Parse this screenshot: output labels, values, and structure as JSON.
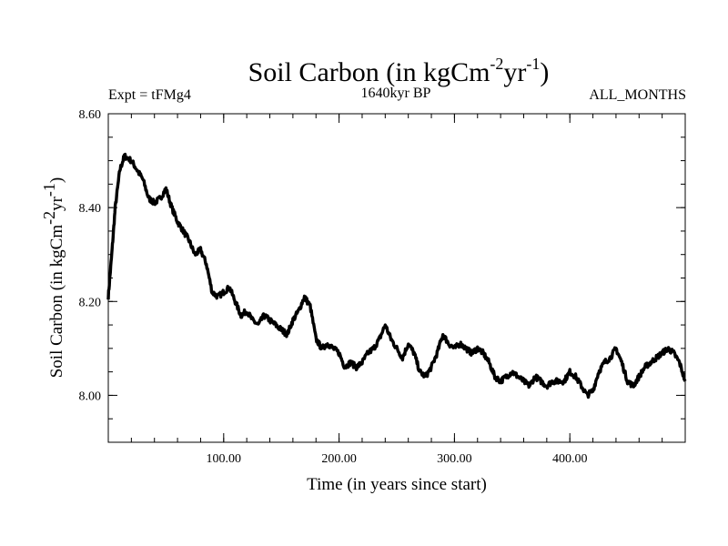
{
  "chart_data": {
    "type": "line",
    "title": {
      "main": "Soil Carbon (in kgCm",
      "exp1": "-2",
      "mid": "yr",
      "exp2": "-1",
      "end": ")"
    },
    "subtitle_left": "Expt = tFMg4",
    "subtitle_center": "1640kyr BP",
    "subtitle_right": "ALL_MONTHS",
    "xlabel": "Time (in years since start)",
    "ylabel": {
      "main": "Soil Carbon (in kgCm",
      "exp1": "-2",
      "mid": "yr",
      "exp2": "-1",
      "end": ")"
    },
    "xlim": [
      0,
      500
    ],
    "ylim": [
      7.9,
      8.6
    ],
    "x_ticks": [
      100,
      200,
      300,
      400
    ],
    "x_tick_labels": [
      "100.00",
      "200.00",
      "300.00",
      "400.00"
    ],
    "y_ticks": [
      8.0,
      8.2,
      8.4,
      8.6
    ],
    "y_tick_labels": [
      "8.00",
      "8.20",
      "8.40",
      "8.60"
    ],
    "grid": false,
    "line_color": "#000000",
    "series": [
      {
        "name": "Soil Carbon",
        "x": [
          0,
          3,
          6,
          10,
          14,
          20,
          25,
          30,
          35,
          40,
          45,
          50,
          55,
          60,
          65,
          70,
          75,
          80,
          85,
          90,
          95,
          100,
          105,
          110,
          115,
          120,
          125,
          130,
          135,
          140,
          145,
          150,
          155,
          160,
          165,
          170,
          175,
          180,
          185,
          190,
          195,
          200,
          205,
          210,
          215,
          220,
          225,
          230,
          235,
          240,
          245,
          250,
          255,
          260,
          265,
          270,
          275,
          280,
          285,
          290,
          295,
          300,
          305,
          310,
          315,
          320,
          325,
          330,
          335,
          340,
          345,
          350,
          355,
          360,
          365,
          370,
          375,
          380,
          385,
          390,
          395,
          400,
          405,
          410,
          415,
          420,
          425,
          430,
          435,
          440,
          445,
          450,
          455,
          460,
          465,
          470,
          475,
          480,
          485,
          490,
          495,
          500
        ],
        "y": [
          8.21,
          8.3,
          8.4,
          8.48,
          8.51,
          8.5,
          8.48,
          8.46,
          8.42,
          8.41,
          8.42,
          8.44,
          8.4,
          8.37,
          8.35,
          8.33,
          8.3,
          8.31,
          8.28,
          8.22,
          8.21,
          8.22,
          8.23,
          8.2,
          8.17,
          8.18,
          8.16,
          8.15,
          8.17,
          8.16,
          8.15,
          8.14,
          8.13,
          8.16,
          8.18,
          8.21,
          8.19,
          8.12,
          8.1,
          8.11,
          8.1,
          8.09,
          8.06,
          8.07,
          8.06,
          8.07,
          8.09,
          8.1,
          8.12,
          8.15,
          8.12,
          8.1,
          8.08,
          8.11,
          8.09,
          8.05,
          8.04,
          8.06,
          8.09,
          8.13,
          8.11,
          8.1,
          8.11,
          8.1,
          8.09,
          8.1,
          8.09,
          8.07,
          8.04,
          8.03,
          8.04,
          8.05,
          8.04,
          8.03,
          8.02,
          8.04,
          8.03,
          8.02,
          8.03,
          8.03,
          8.03,
          8.05,
          8.04,
          8.02,
          8.0,
          8.01,
          8.05,
          8.07,
          8.08,
          8.1,
          8.07,
          8.03,
          8.02,
          8.04,
          8.06,
          8.07,
          8.08,
          8.09,
          8.1,
          8.09,
          8.07,
          8.03
        ]
      }
    ]
  }
}
